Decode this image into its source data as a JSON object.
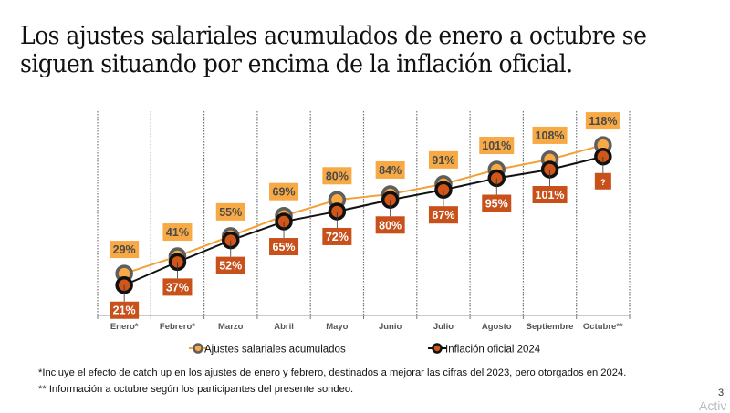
{
  "slide": {
    "title_lines": [
      "Los ajustes salariales acumulados de enero a octubre se",
      "siguen situando por encima de la inflación oficial."
    ],
    "footnotes": [
      "*Incluye el efecto de catch up en los ajustes de enero y febrero, destinados a mejorar las cifras del 2023, pero otorgados en 2024.",
      "** Información a octubre según los participantes del presente sondeo."
    ],
    "page_number": "3",
    "watermark": "Activ"
  },
  "colors": {
    "ajustes_line": "#F2A134",
    "ajustes_label_bg": "#F7A945",
    "ajustes_label_text": "#4A4A4A",
    "ajustes_marker_ring": "#5E5E5E",
    "inflacion_line": "#111111",
    "inflacion_label_bg": "#C8501A",
    "inflacion_label_text": "#FFFFFF",
    "inflacion_marker_fill": "#D0561A",
    "grid": "#777777"
  },
  "chart_data": {
    "type": "line",
    "title": "",
    "xlabel": "",
    "ylabel": "",
    "categories": [
      "Enero*",
      "Febrero*",
      "Marzo",
      "Abril",
      "Mayo",
      "Junio",
      "Julio",
      "Agosto",
      "Septiembre",
      "Octubre**"
    ],
    "ylim": [
      0,
      130
    ],
    "grid": "vertical dotted",
    "legend_position": "bottom",
    "series": [
      {
        "name": "Ajustes salariales acumulados",
        "values": [
          29,
          41,
          55,
          69,
          80,
          84,
          91,
          101,
          108,
          118
        ],
        "labels": [
          "29%",
          "41%",
          "55%",
          "69%",
          "80%",
          "84%",
          "91%",
          "101%",
          "108%",
          "118%"
        ],
        "label_position": "above"
      },
      {
        "name": "Inflación oficial 2024",
        "values": [
          21,
          37,
          52,
          65,
          72,
          80,
          87,
          95,
          101,
          null
        ],
        "marker_only_value_octubre": 110,
        "labels": [
          "21%",
          "37%",
          "52%",
          "65%",
          "72%",
          "80%",
          "87%",
          "95%",
          "101%",
          "?"
        ],
        "label_position": "below"
      }
    ]
  }
}
